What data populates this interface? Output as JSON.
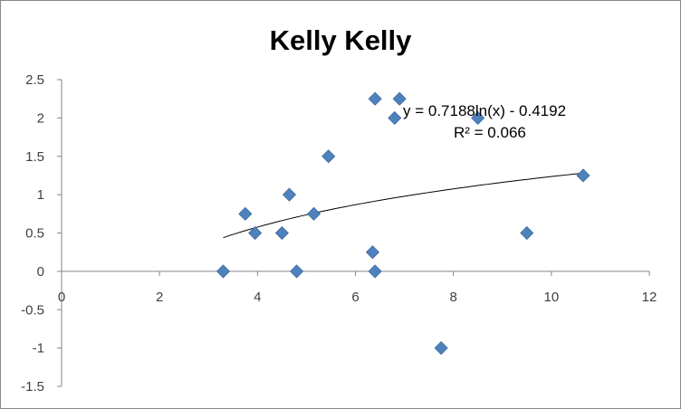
{
  "chart_data": {
    "type": "scatter",
    "title": "Kelly Kelly",
    "xlabel": "",
    "ylabel": "",
    "xlim": [
      0,
      12
    ],
    "ylim": [
      -1.5,
      2.5
    ],
    "x_ticks": [
      0,
      2,
      4,
      6,
      8,
      10,
      12
    ],
    "y_ticks": [
      -1.5,
      -1,
      -0.5,
      0,
      0.5,
      1,
      1.5,
      2,
      2.5
    ],
    "x_tick_labels": [
      "0",
      "2",
      "4",
      "6",
      "8",
      "10",
      "12"
    ],
    "y_tick_labels": [
      "-1.5",
      "-1",
      "-0.5",
      "0",
      "0.5",
      "1",
      "1.5",
      "2",
      "2.5"
    ],
    "grid": false,
    "legend": "none",
    "marker": "diamond",
    "marker_color": "#4F81BD",
    "series": [
      {
        "points": [
          {
            "x": 3.3,
            "y": 0
          },
          {
            "x": 3.75,
            "y": 0.75
          },
          {
            "x": 3.95,
            "y": 0.5
          },
          {
            "x": 4.5,
            "y": 0.5
          },
          {
            "x": 4.65,
            "y": 1
          },
          {
            "x": 4.8,
            "y": 0
          },
          {
            "x": 5.15,
            "y": 0.75
          },
          {
            "x": 5.45,
            "y": 1.5
          },
          {
            "x": 6.35,
            "y": 0.25
          },
          {
            "x": 6.4,
            "y": 0
          },
          {
            "x": 6.4,
            "y": 2.25
          },
          {
            "x": 6.8,
            "y": 2
          },
          {
            "x": 6.9,
            "y": 2.25
          },
          {
            "x": 7.75,
            "y": -1
          },
          {
            "x": 8.5,
            "y": 2
          },
          {
            "x": 9.5,
            "y": 0.5
          },
          {
            "x": 10.65,
            "y": 1.25
          }
        ]
      }
    ],
    "trendline": {
      "type": "logarithmic",
      "a": 0.7188,
      "b": -0.4192,
      "x_range": [
        3.3,
        10.65
      ],
      "color": "#000000",
      "equation_label": "y = 0.7188ln(x) - 0.4192",
      "r2_label": "R² = 0.066"
    }
  }
}
